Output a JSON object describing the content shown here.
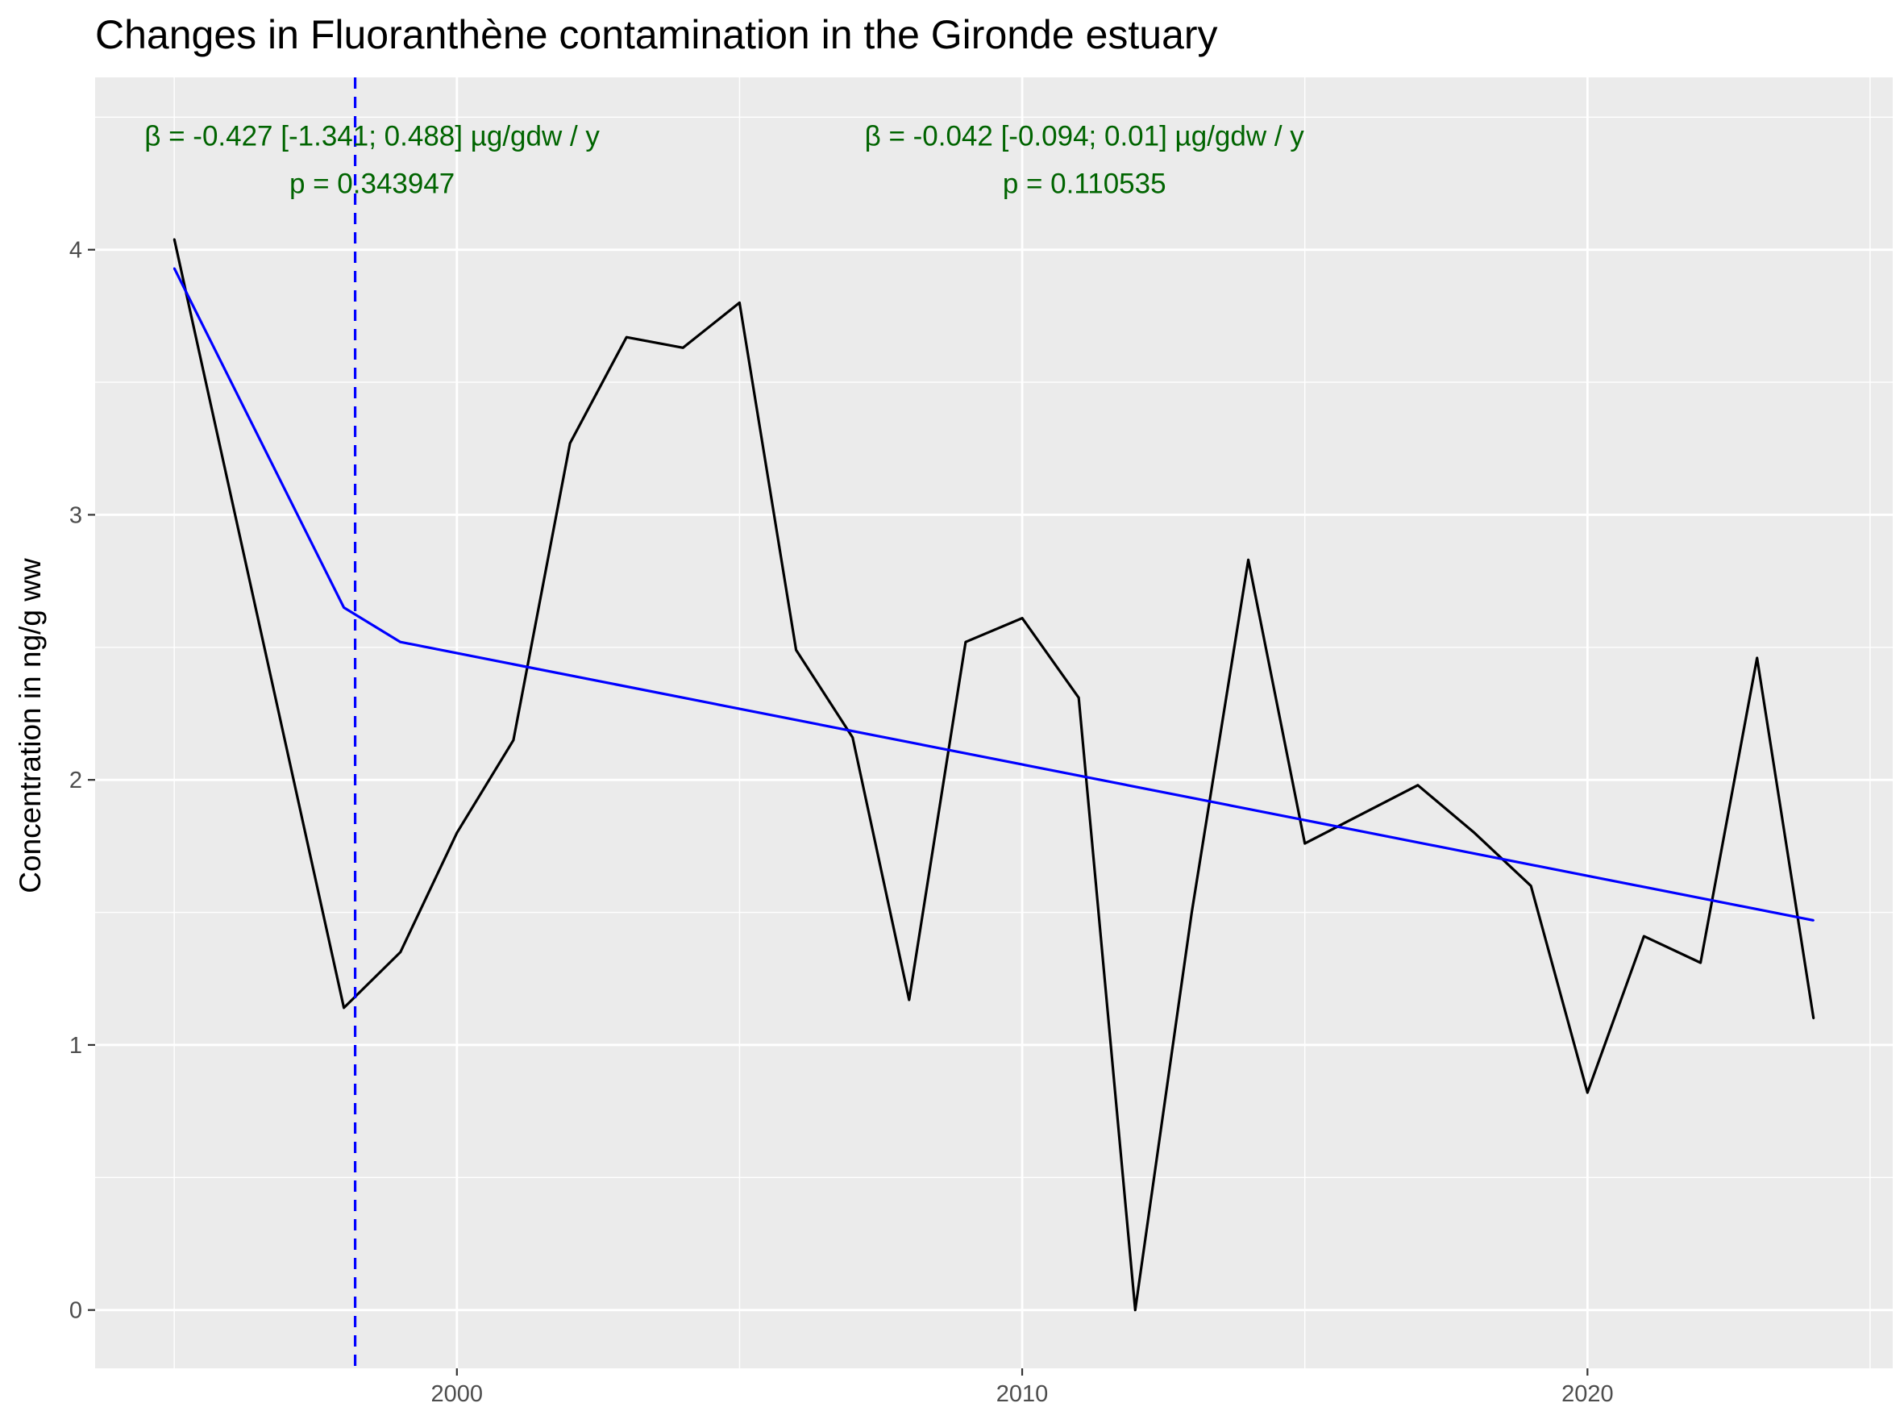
{
  "chart_data": {
    "type": "line",
    "title": "Changes in Fluoranthène contamination in the Gironde estuary",
    "xlabel": "",
    "ylabel": "Concentration in ng/g ww",
    "xlim": [
      1993.6,
      2025.4
    ],
    "ylim": [
      -0.22,
      4.65
    ],
    "x_ticks": [
      2000,
      2010,
      2020
    ],
    "y_ticks": [
      0,
      1,
      2,
      3,
      4
    ],
    "grid": true,
    "legend": "none",
    "series": [
      {
        "role": "observed",
        "color": "#000000",
        "x": [
          1995,
          1998,
          1999,
          2000,
          2001,
          2002,
          2003,
          2004,
          2005,
          2006,
          2007,
          2008,
          2009,
          2010,
          2011,
          2012,
          2013,
          2014,
          2015,
          2016,
          2017,
          2018,
          2019,
          2020,
          2021,
          2022,
          2023,
          2024
        ],
        "values": [
          4.04,
          1.14,
          1.35,
          1.8,
          2.15,
          3.27,
          3.67,
          3.63,
          3.8,
          2.49,
          2.16,
          1.17,
          2.52,
          2.61,
          2.31,
          0.0,
          1.5,
          2.83,
          1.76,
          1.87,
          1.98,
          1.8,
          1.6,
          0.82,
          1.41,
          1.31,
          2.46,
          1.1
        ]
      },
      {
        "role": "segmented-trend",
        "color": "#0000ff",
        "x": [
          1995,
          1998,
          1999,
          2024
        ],
        "values": [
          3.93,
          2.65,
          2.52,
          1.47
        ]
      }
    ],
    "breakpoint": {
      "x": 1998.2,
      "color": "#0000ff",
      "style": "dashed"
    },
    "annotations": [
      {
        "x": 1998.5,
        "y": 4.43,
        "text": "β = -0.427 [-1.341; 0.488] µg/gdw / y",
        "color": "#006400"
      },
      {
        "x": 1998.5,
        "y": 4.25,
        "text": "p = 0.343947",
        "color": "#006400"
      },
      {
        "x": 2011.1,
        "y": 4.43,
        "text": "β = -0.042 [-0.094; 0.01] µg/gdw / y",
        "color": "#006400"
      },
      {
        "x": 2011.1,
        "y": 4.25,
        "text": "p = 0.110535",
        "color": "#006400"
      }
    ],
    "colors": {
      "panel_background": "#ebebeb",
      "gridline": "#ffffff",
      "tick_text": "#4d4d4d"
    }
  }
}
